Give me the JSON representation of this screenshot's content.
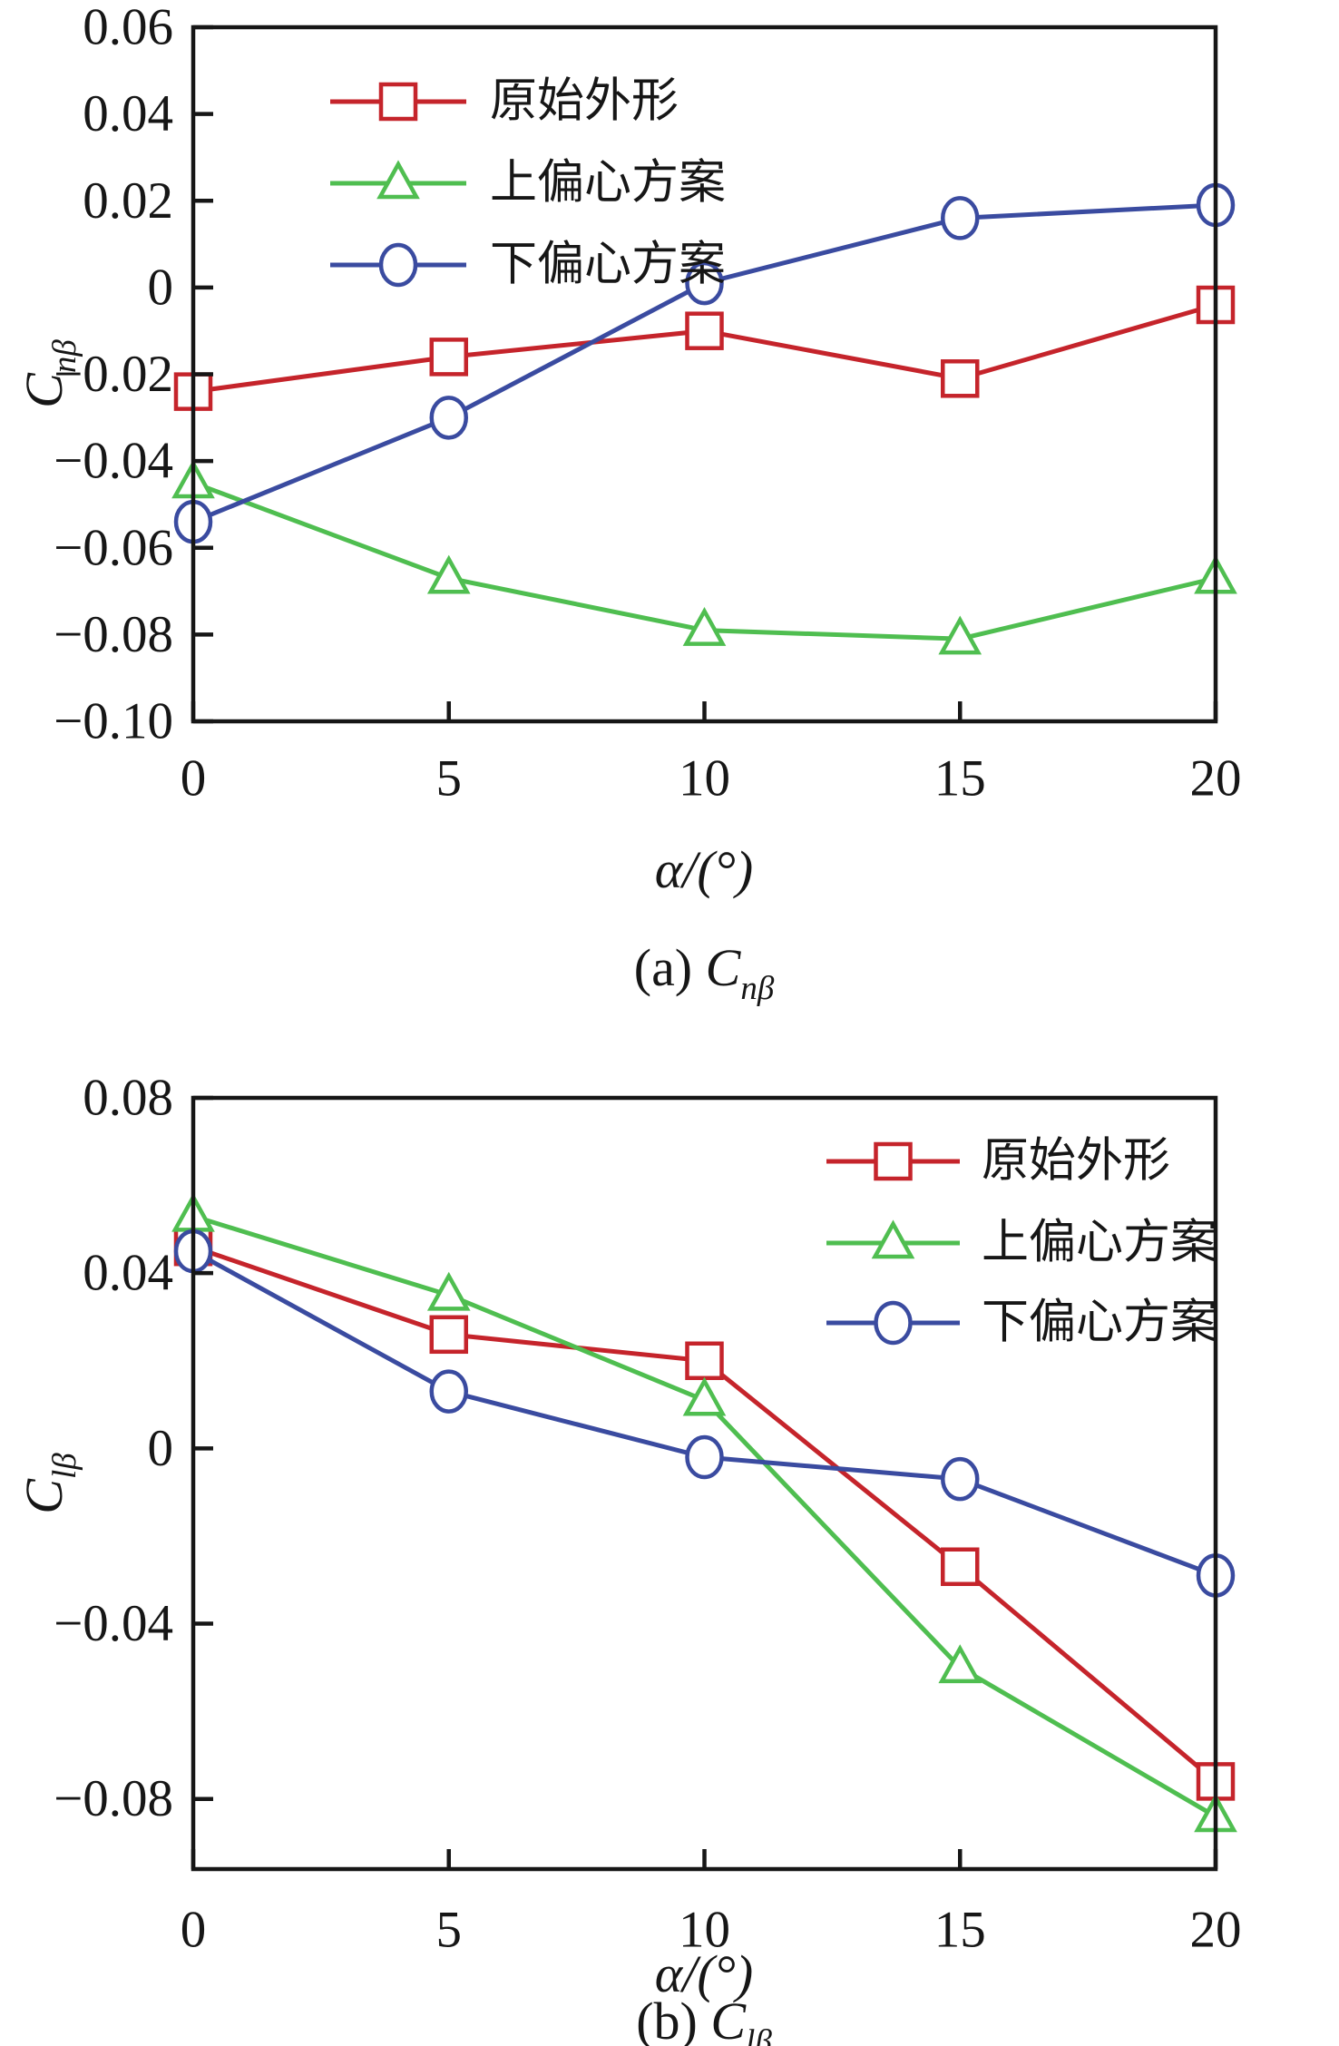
{
  "figure": {
    "background": "#ffffff"
  },
  "chart_data": [
    {
      "type": "line",
      "panel": "a",
      "title": "",
      "caption_prefix": "(a) ",
      "xlabel": "α/(°)",
      "ylabel_main": "C",
      "ylabel_sub": "nβ",
      "x": [
        0,
        5,
        10,
        15,
        20
      ],
      "x_ticks": [
        0,
        5,
        10,
        15,
        20
      ],
      "y_ticks": [
        0.06,
        0.04,
        0.02,
        0,
        -0.02,
        -0.04,
        -0.06,
        -0.08,
        -0.1
      ],
      "xlim": [
        0,
        20
      ],
      "ylim": [
        -0.1,
        0.06
      ],
      "grid": false,
      "legend_position": "upper-left",
      "series": [
        {
          "key": "original-shape",
          "name": "原始外形",
          "color": "#c5242b",
          "marker": "square",
          "values": [
            -0.024,
            -0.016,
            -0.01,
            -0.021,
            -0.004
          ]
        },
        {
          "key": "upper-eccentric",
          "name": "上偏心方案",
          "color": "#4fbe50",
          "marker": "triangle",
          "values": [
            -0.045,
            -0.067,
            -0.079,
            -0.081,
            -0.067
          ]
        },
        {
          "key": "lower-eccentric",
          "name": "下偏心方案",
          "color": "#3a4ba0",
          "marker": "circle",
          "values": [
            -0.054,
            -0.03,
            0.001,
            0.016,
            0.019
          ]
        }
      ]
    },
    {
      "type": "line",
      "panel": "b",
      "title": "",
      "caption_prefix": "(b) ",
      "xlabel": "α/(°)",
      "ylabel_main": "C",
      "ylabel_sub": "lβ",
      "x": [
        0,
        5,
        10,
        15,
        20
      ],
      "x_ticks": [
        0,
        5,
        10,
        15,
        20
      ],
      "y_ticks": [
        0.08,
        0.04,
        0,
        -0.04,
        -0.08
      ],
      "xlim": [
        0,
        20
      ],
      "ylim": [
        -0.096,
        0.08
      ],
      "grid": false,
      "legend_position": "upper-right",
      "series": [
        {
          "key": "original-shape",
          "name": "原始外形",
          "color": "#c5242b",
          "marker": "square",
          "values": [
            0.046,
            0.026,
            0.02,
            -0.027,
            -0.076
          ]
        },
        {
          "key": "upper-eccentric",
          "name": "上偏心方案",
          "color": "#4fbe50",
          "marker": "triangle",
          "values": [
            0.053,
            0.035,
            0.011,
            -0.05,
            -0.084
          ]
        },
        {
          "key": "lower-eccentric",
          "name": "下偏心方案",
          "color": "#3a4ba0",
          "marker": "circle",
          "values": [
            0.045,
            0.013,
            -0.002,
            -0.007,
            -0.029
          ]
        }
      ]
    }
  ]
}
